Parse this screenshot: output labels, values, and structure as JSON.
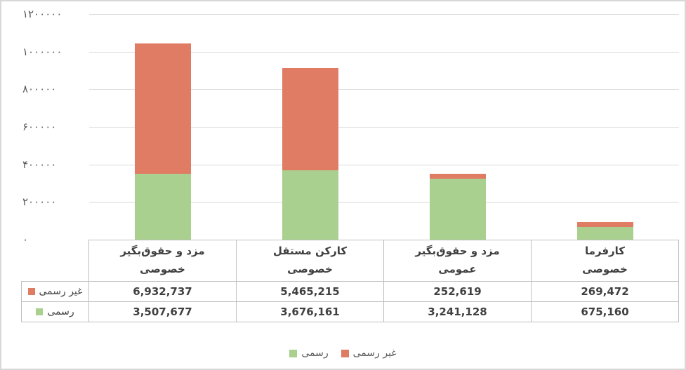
{
  "chart_data": {
    "type": "bar",
    "stacked": true,
    "title": "",
    "xlabel": "",
    "ylabel": "",
    "grid": true,
    "legend_position": "bottom",
    "categories": [
      "مزد و حقوق‌بگیر خصوصی",
      "کارکن مستقل خصوصی",
      "مزد و حقوق‌بگیر عمومی",
      "کارفرما خصوصی"
    ],
    "categories_display": [
      {
        "line1": "مزد و حقوق‌بگیر",
        "line2": "خصوصی"
      },
      {
        "line1": "کارکن مستقل",
        "line2": "خصوصی"
      },
      {
        "line1": "مزد و حقوق‌بگیر",
        "line2": "عمومی"
      },
      {
        "line1": "کارفرما",
        "line2": "خصوصی"
      }
    ],
    "series": [
      {
        "name": "رسمی",
        "color": "#A9D08E",
        "values": [
          3507677,
          3676161,
          3241128,
          675160
        ],
        "display_values": [
          "3,507,677",
          "3,676,161",
          "3,241,128",
          "675,160"
        ]
      },
      {
        "name": "غیر رسمی",
        "color": "#E07C64",
        "values": [
          6932737,
          5465215,
          252619,
          269472
        ],
        "display_values": [
          "6,932,737",
          "5,465,215",
          "252,619",
          "269,472"
        ]
      }
    ],
    "y_axis": {
      "min": 0,
      "max": 1200000,
      "value_scale": 0.1,
      "tick_labels": [
        "۱۲۰۰۰۰۰",
        "۱۰۰۰۰۰۰",
        "۸۰۰۰۰۰",
        "۶۰۰۰۰۰",
        "۴۰۰۰۰۰",
        "۲۰۰۰۰۰",
        "۰"
      ]
    },
    "data_table": {
      "row_order": [
        "غیر رسمی",
        "رسمی"
      ]
    },
    "legend": [
      {
        "label": "رسمی",
        "color": "#A9D08E"
      },
      {
        "label": "غیر رسمی",
        "color": "#E07C64"
      }
    ]
  },
  "colors": {
    "gridline": "#d9d9d9",
    "axis_line": "#bfbfbf",
    "table_border": "#bfbfbf",
    "tick_text": "#595959",
    "value_text": "#404040",
    "formal_green": "#A9D08E",
    "informal_red": "#E07C64"
  }
}
